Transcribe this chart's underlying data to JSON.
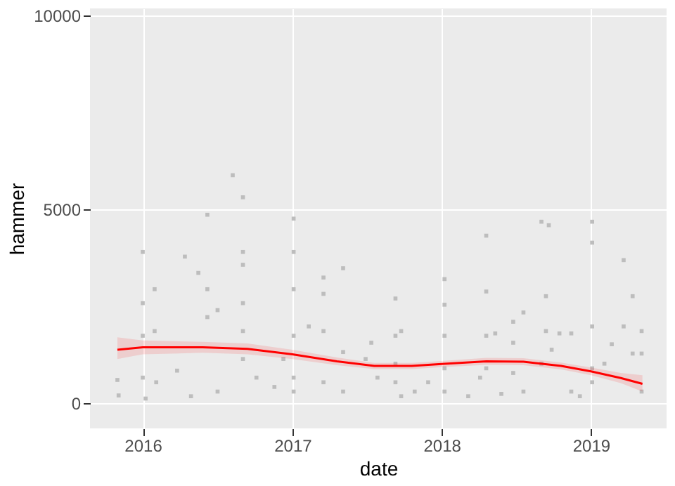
{
  "chart_data": {
    "type": "scatter",
    "xlabel": "date",
    "ylabel": "hammer",
    "xlim": [
      "2015-08-25",
      "2019-07-05"
    ],
    "xticks": [
      "2016",
      "2017",
      "2018",
      "2019"
    ],
    "ylim": [
      -650,
      10180
    ],
    "yticks": [
      0,
      5000,
      10000
    ],
    "grid": true,
    "series": [
      {
        "color": "#bdbdbd",
        "marker": "square",
        "x": [
          "2015-10-31",
          "2015-11-03",
          "2016-01-01",
          "2016-01-01",
          "2016-01-01",
          "2016-01-01",
          "2016-01-08",
          "2016-01-30",
          "2016-01-30",
          "2016-02-03",
          "2016-03-25",
          "2016-04-13",
          "2016-04-28",
          "2016-05-16",
          "2016-06-07",
          "2016-06-07",
          "2016-06-07",
          "2016-07-02",
          "2016-07-02",
          "2016-08-08",
          "2016-09-02",
          "2016-09-02",
          "2016-09-02",
          "2016-09-02",
          "2016-09-02",
          "2016-09-02",
          "2016-10-05",
          "2016-11-18",
          "2016-12-10",
          "2017-01-04",
          "2017-01-04",
          "2017-01-04",
          "2017-01-04",
          "2017-01-04",
          "2017-01-04",
          "2017-02-10",
          "2017-03-18",
          "2017-03-18",
          "2017-03-18",
          "2017-03-18",
          "2017-05-05",
          "2017-05-05",
          "2017-05-05",
          "2017-06-29",
          "2017-07-13",
          "2017-07-28",
          "2017-09-10",
          "2017-09-10",
          "2017-09-10",
          "2017-09-10",
          "2017-09-24",
          "2017-09-24",
          "2017-10-27",
          "2017-11-29",
          "2018-01-08",
          "2018-01-08",
          "2018-01-08",
          "2018-01-08",
          "2018-01-08",
          "2018-03-07",
          "2018-04-05",
          "2018-04-20",
          "2018-04-20",
          "2018-04-20",
          "2018-04-20",
          "2018-05-12",
          "2018-05-27",
          "2018-06-25",
          "2018-06-25",
          "2018-06-25",
          "2018-07-20",
          "2018-07-20",
          "2018-09-02",
          "2018-09-20",
          "2018-09-13",
          "2018-09-13",
          "2018-09-02",
          "2018-09-27",
          "2018-10-16",
          "2018-11-14",
          "2018-11-14",
          "2018-12-05",
          "2019-01-04",
          "2019-01-04",
          "2019-01-04",
          "2019-01-04",
          "2019-01-04",
          "2019-02-03",
          "2019-02-21",
          "2019-03-22",
          "2019-03-22",
          "2019-04-13",
          "2019-04-13",
          "2019-05-05",
          "2019-05-05",
          "2019-05-05"
        ],
        "values": [
          600,
          200,
          3900,
          2580,
          1740,
          660,
          120,
          2940,
          1860,
          540,
          840,
          3780,
          180,
          3360,
          4860,
          2940,
          2220,
          2400,
          300,
          5880,
          5310,
          3900,
          3570,
          2580,
          1860,
          1140,
          660,
          420,
          1140,
          4760,
          3900,
          2940,
          1740,
          660,
          300,
          1980,
          3240,
          2820,
          1860,
          540,
          3480,
          1320,
          300,
          1140,
          1560,
          660,
          2700,
          1740,
          1020,
          540,
          1860,
          180,
          300,
          540,
          3200,
          2540,
          1740,
          900,
          300,
          180,
          660,
          4320,
          2880,
          1740,
          900,
          1800,
          240,
          2100,
          1560,
          780,
          2340,
          300,
          4680,
          4590,
          2760,
          1860,
          1020,
          1380,
          1800,
          1800,
          300,
          180,
          4680,
          4140,
          1980,
          900,
          540,
          1020,
          1520,
          3690,
          1980,
          2760,
          1280,
          1860,
          1280,
          300
        ]
      },
      {
        "type": "line",
        "color": "#ff0000",
        "marker": "none",
        "x": [
          "2015-10-31",
          "2016-01-01",
          "2016-05-27",
          "2016-09-13",
          "2017-01-01",
          "2017-04-20",
          "2017-07-20",
          "2017-10-20",
          "2018-01-01",
          "2018-04-20",
          "2018-07-20",
          "2018-10-20",
          "2019-01-01",
          "2019-03-15",
          "2019-05-07"
        ],
        "values": [
          1380,
          1440,
          1440,
          1400,
          1260,
          1080,
          960,
          960,
          1010,
          1080,
          1070,
          960,
          820,
          650,
          500
        ],
        "lower": [
          1140,
          1260,
          1300,
          1260,
          1140,
          980,
          880,
          880,
          930,
          990,
          980,
          870,
          720,
          520,
          300
        ],
        "upper": [
          1700,
          1620,
          1580,
          1540,
          1380,
          1180,
          1040,
          1040,
          1090,
          1170,
          1160,
          1050,
          920,
          780,
          720
        ]
      }
    ]
  }
}
